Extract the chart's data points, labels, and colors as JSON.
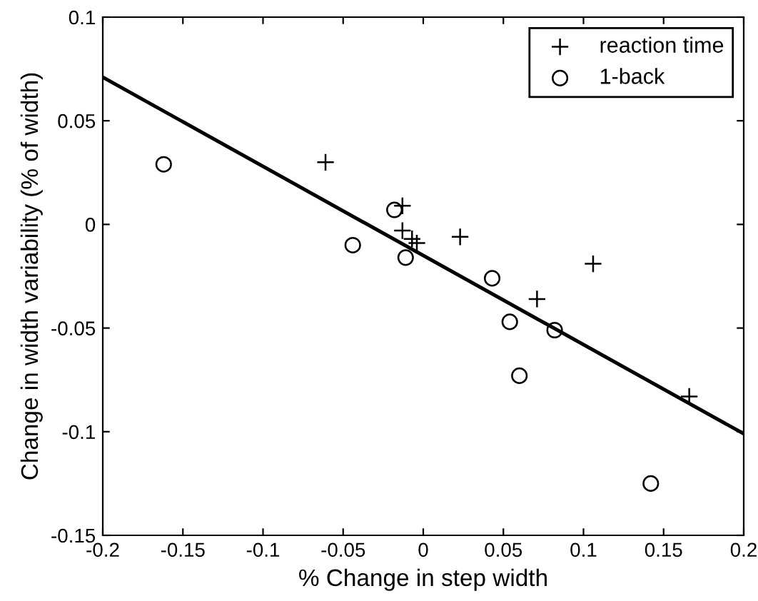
{
  "chart_data": {
    "type": "scatter",
    "xlabel": "% Change in step width",
    "ylabel": "Change in width variability (% of width)",
    "xlim": [
      -0.2,
      0.2
    ],
    "ylim": [
      -0.15,
      0.1
    ],
    "xticks": [
      -0.2,
      -0.15,
      -0.1,
      -0.05,
      0,
      0.05,
      0.1,
      0.15,
      0.2
    ],
    "yticks": [
      -0.15,
      -0.1,
      -0.05,
      0,
      0.05,
      0.1
    ],
    "grid": false,
    "legend": "top right",
    "series": [
      {
        "name": "reaction time",
        "marker": "cross",
        "color": "#000000",
        "x": [
          -0.061,
          -0.013,
          -0.013,
          -0.007,
          -0.004,
          0.023,
          0.071,
          0.106,
          0.166
        ],
        "values": [
          0.03,
          0.009,
          -0.003,
          -0.007,
          -0.009,
          -0.006,
          -0.036,
          -0.019,
          -0.083
        ]
      },
      {
        "name": "1-back",
        "marker": "circle",
        "color": "#000000",
        "x": [
          -0.162,
          -0.044,
          -0.018,
          -0.011,
          0.043,
          0.054,
          0.06,
          0.082,
          0.142
        ],
        "values": [
          0.029,
          -0.01,
          0.007,
          -0.016,
          -0.026,
          -0.047,
          -0.073,
          -0.051,
          -0.125
        ]
      },
      {
        "type": "line",
        "color": "#000000",
        "x": [
          -0.2,
          0.2
        ],
        "values": [
          0.071,
          -0.101
        ]
      }
    ]
  }
}
